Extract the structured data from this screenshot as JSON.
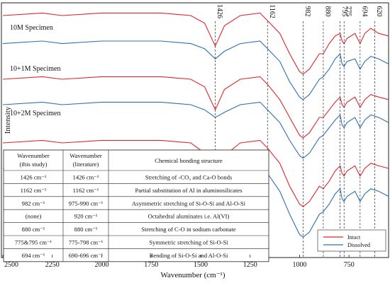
{
  "chart_data": {
    "type": "line",
    "xlabel": "Wavenumber (cm⁻¹)",
    "ylabel": "Intensity",
    "xlim": [
      2500,
      550
    ],
    "x_ticks": [
      2500,
      2250,
      2000,
      1750,
      1500,
      1250,
      1000,
      750
    ],
    "x_tick_labels": [
      "2500",
      "2250",
      "2000",
      "1750",
      "1500",
      "1250",
      "1000",
      "750"
    ],
    "grid": false,
    "legend_position": "bottom-right",
    "peak_markers": [
      1426,
      1162,
      982,
      880,
      795,
      775,
      694,
      620
    ],
    "peak_labels": [
      "1426",
      "1162",
      "982",
      "880",
      "795",
      "775",
      "694",
      "620"
    ],
    "specimen_labels": [
      "10M Specimen",
      "10+1M Specimen",
      "10+2M Specimen"
    ],
    "series": [
      {
        "name": "Intact",
        "color": "#e0262a"
      },
      {
        "name": "Dissolved",
        "color": "#2f6fb3"
      }
    ],
    "spectra": [
      {
        "specimen": "10M Specimen",
        "series": "Intact",
        "points": [
          [
            2500,
            0.95
          ],
          [
            2300,
            0.96
          ],
          [
            2200,
            0.95
          ],
          [
            2000,
            0.96
          ],
          [
            1700,
            0.96
          ],
          [
            1550,
            0.95
          ],
          [
            1480,
            0.92
          ],
          [
            1426,
            0.83
          ],
          [
            1380,
            0.91
          ],
          [
            1300,
            0.95
          ],
          [
            1200,
            0.96
          ],
          [
            1162,
            0.93
          ],
          [
            1100,
            0.88
          ],
          [
            1050,
            0.8
          ],
          [
            1000,
            0.73
          ],
          [
            982,
            0.72
          ],
          [
            950,
            0.74
          ],
          [
            900,
            0.8
          ],
          [
            880,
            0.8
          ],
          [
            850,
            0.84
          ],
          [
            820,
            0.87
          ],
          [
            795,
            0.88
          ],
          [
            785,
            0.85
          ],
          [
            775,
            0.84
          ],
          [
            760,
            0.86
          ],
          [
            720,
            0.88
          ],
          [
            694,
            0.84
          ],
          [
            670,
            0.88
          ],
          [
            640,
            0.9
          ],
          [
            600,
            0.88
          ],
          [
            550,
            0.87
          ]
        ]
      },
      {
        "specimen": "10M Specimen",
        "series": "Dissolved",
        "points": [
          [
            2500,
            0.84
          ],
          [
            2300,
            0.85
          ],
          [
            2200,
            0.84
          ],
          [
            2000,
            0.85
          ],
          [
            1700,
            0.85
          ],
          [
            1550,
            0.84
          ],
          [
            1480,
            0.82
          ],
          [
            1426,
            0.78
          ],
          [
            1380,
            0.81
          ],
          [
            1300,
            0.84
          ],
          [
            1200,
            0.85
          ],
          [
            1162,
            0.82
          ],
          [
            1100,
            0.77
          ],
          [
            1050,
            0.69
          ],
          [
            1000,
            0.63
          ],
          [
            982,
            0.62
          ],
          [
            950,
            0.64
          ],
          [
            900,
            0.7
          ],
          [
            880,
            0.71
          ],
          [
            850,
            0.74
          ],
          [
            820,
            0.78
          ],
          [
            795,
            0.8
          ],
          [
            785,
            0.76
          ],
          [
            775,
            0.75
          ],
          [
            760,
            0.77
          ],
          [
            720,
            0.78
          ],
          [
            694,
            0.74
          ],
          [
            670,
            0.77
          ],
          [
            640,
            0.79
          ],
          [
            600,
            0.78
          ],
          [
            550,
            0.76
          ]
        ]
      },
      {
        "specimen": "10+1M Specimen",
        "series": "Intact",
        "points": [
          [
            2500,
            0.7
          ],
          [
            2300,
            0.71
          ],
          [
            2200,
            0.7
          ],
          [
            2000,
            0.71
          ],
          [
            1700,
            0.71
          ],
          [
            1550,
            0.7
          ],
          [
            1480,
            0.67
          ],
          [
            1426,
            0.58
          ],
          [
            1380,
            0.66
          ],
          [
            1300,
            0.7
          ],
          [
            1200,
            0.71
          ],
          [
            1162,
            0.68
          ],
          [
            1100,
            0.62
          ],
          [
            1050,
            0.55
          ],
          [
            1000,
            0.48
          ],
          [
            982,
            0.47
          ],
          [
            950,
            0.49
          ],
          [
            900,
            0.55
          ],
          [
            880,
            0.55
          ],
          [
            850,
            0.58
          ],
          [
            820,
            0.61
          ],
          [
            795,
            0.63
          ],
          [
            785,
            0.6
          ],
          [
            775,
            0.59
          ],
          [
            760,
            0.61
          ],
          [
            720,
            0.63
          ],
          [
            694,
            0.59
          ],
          [
            670,
            0.62
          ],
          [
            640,
            0.64
          ],
          [
            600,
            0.63
          ],
          [
            550,
            0.62
          ]
        ]
      },
      {
        "specimen": "10+1M Specimen",
        "series": "Dissolved",
        "points": [
          [
            2500,
            0.6
          ],
          [
            2300,
            0.61
          ],
          [
            2200,
            0.6
          ],
          [
            2000,
            0.61
          ],
          [
            1700,
            0.61
          ],
          [
            1550,
            0.6
          ],
          [
            1480,
            0.58
          ],
          [
            1426,
            0.55
          ],
          [
            1380,
            0.57
          ],
          [
            1300,
            0.6
          ],
          [
            1200,
            0.61
          ],
          [
            1162,
            0.58
          ],
          [
            1100,
            0.53
          ],
          [
            1050,
            0.46
          ],
          [
            1000,
            0.4
          ],
          [
            982,
            0.39
          ],
          [
            950,
            0.41
          ],
          [
            900,
            0.47
          ],
          [
            880,
            0.48
          ],
          [
            850,
            0.51
          ],
          [
            820,
            0.54
          ],
          [
            795,
            0.56
          ],
          [
            785,
            0.52
          ],
          [
            775,
            0.51
          ],
          [
            760,
            0.53
          ],
          [
            720,
            0.55
          ],
          [
            694,
            0.51
          ],
          [
            670,
            0.54
          ],
          [
            640,
            0.56
          ],
          [
            600,
            0.55
          ],
          [
            550,
            0.53
          ]
        ]
      },
      {
        "specimen": "10+2M Specimen",
        "series": "Intact",
        "points": [
          [
            2500,
            0.45
          ],
          [
            2300,
            0.46
          ],
          [
            2200,
            0.45
          ],
          [
            2000,
            0.46
          ],
          [
            1700,
            0.46
          ],
          [
            1550,
            0.45
          ],
          [
            1480,
            0.41
          ],
          [
            1426,
            0.32
          ],
          [
            1380,
            0.4
          ],
          [
            1300,
            0.45
          ],
          [
            1200,
            0.46
          ],
          [
            1162,
            0.43
          ],
          [
            1100,
            0.37
          ],
          [
            1050,
            0.28
          ],
          [
            1000,
            0.21
          ],
          [
            982,
            0.2
          ],
          [
            950,
            0.22
          ],
          [
            900,
            0.28
          ],
          [
            880,
            0.27
          ],
          [
            850,
            0.3
          ],
          [
            820,
            0.34
          ],
          [
            795,
            0.36
          ],
          [
            785,
            0.33
          ],
          [
            775,
            0.32
          ],
          [
            760,
            0.34
          ],
          [
            720,
            0.36
          ],
          [
            694,
            0.32
          ],
          [
            670,
            0.35
          ],
          [
            640,
            0.37
          ],
          [
            600,
            0.36
          ],
          [
            550,
            0.35
          ]
        ]
      },
      {
        "specimen": "10+2M Specimen",
        "series": "Dissolved",
        "points": [
          [
            2500,
            0.35
          ],
          [
            2300,
            0.36
          ],
          [
            2200,
            0.35
          ],
          [
            2000,
            0.36
          ],
          [
            1700,
            0.36
          ],
          [
            1550,
            0.35
          ],
          [
            1480,
            0.33
          ],
          [
            1426,
            0.3
          ],
          [
            1380,
            0.33
          ],
          [
            1300,
            0.35
          ],
          [
            1200,
            0.36
          ],
          [
            1162,
            0.33
          ],
          [
            1100,
            0.26
          ],
          [
            1050,
            0.17
          ],
          [
            1000,
            0.09
          ],
          [
            982,
            0.08
          ],
          [
            950,
            0.1
          ],
          [
            900,
            0.17
          ],
          [
            880,
            0.18
          ],
          [
            850,
            0.21
          ],
          [
            820,
            0.25
          ],
          [
            795,
            0.27
          ],
          [
            785,
            0.23
          ],
          [
            775,
            0.22
          ],
          [
            760,
            0.24
          ],
          [
            720,
            0.26
          ],
          [
            694,
            0.22
          ],
          [
            670,
            0.25
          ],
          [
            640,
            0.27
          ],
          [
            600,
            0.26
          ],
          [
            550,
            0.24
          ]
        ]
      }
    ],
    "table": {
      "headers": [
        "Wavenumber (this study)",
        "Wavenumber (literature)",
        "Chemical bonding structure"
      ],
      "header_lines": [
        [
          "Wavenumber",
          "(this study)"
        ],
        [
          "Wavenumber",
          "(literature)"
        ],
        [
          "Chemical bonding structure"
        ]
      ],
      "rows": [
        [
          "1426 cm⁻¹",
          "1426 cm⁻¹",
          "Stretching of -CO₃ and Ca-O bonds"
        ],
        [
          "1162 cm⁻¹",
          "1162 cm⁻¹",
          "Partial substitution of Al in aluminosilicates"
        ],
        [
          "982 cm⁻¹",
          "975-990 cm⁻¹",
          "Asymmetric stretching of Si-O-Si and Al-O-Si"
        ],
        [
          "(none)",
          "920 cm⁻¹",
          "Octahedral aluminates i.e. Al(VI)"
        ],
        [
          "880 cm⁻¹",
          "880 cm⁻¹",
          "Stretching of C-O in sodium carbonate"
        ],
        [
          "775&795 cm⁻¹",
          "775-798 cm⁻¹",
          "Symmetric stretching of Si-O-Si"
        ],
        [
          "694 cm⁻¹",
          "690-696 cm⁻¹",
          "Bending of Si-O-Si and Al-O-Si"
        ]
      ]
    }
  }
}
